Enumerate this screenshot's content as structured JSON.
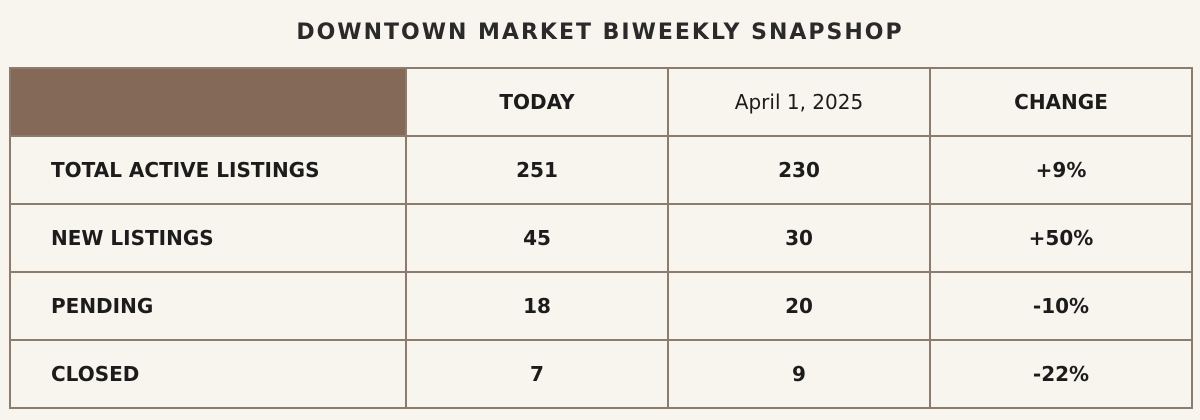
{
  "title": "DOWNTOWN MARKET BIWEEKLY SNAPSHOP",
  "chart_data": {
    "type": "table",
    "title": "DOWNTOWN MARKET BIWEEKLY SNAPSHOP",
    "columns": [
      "",
      "TODAY",
      "April 1, 2025",
      "CHANGE"
    ],
    "rows": [
      {
        "label": "TOTAL ACTIVE LISTINGS",
        "today": "251",
        "april": "230",
        "change": "+9%"
      },
      {
        "label": "NEW LISTINGS",
        "today": "45",
        "april": "30",
        "change": "+50%"
      },
      {
        "label": "PENDING",
        "today": "18",
        "april": "20",
        "change": "-10%"
      },
      {
        "label": "CLOSED",
        "today": "7",
        "april": "9",
        "change": "-22%"
      }
    ]
  },
  "colors": {
    "background": "#f8f5ee",
    "header_corner": "#856958",
    "border": "#8d7b6e",
    "text": "#1c1c1c"
  }
}
